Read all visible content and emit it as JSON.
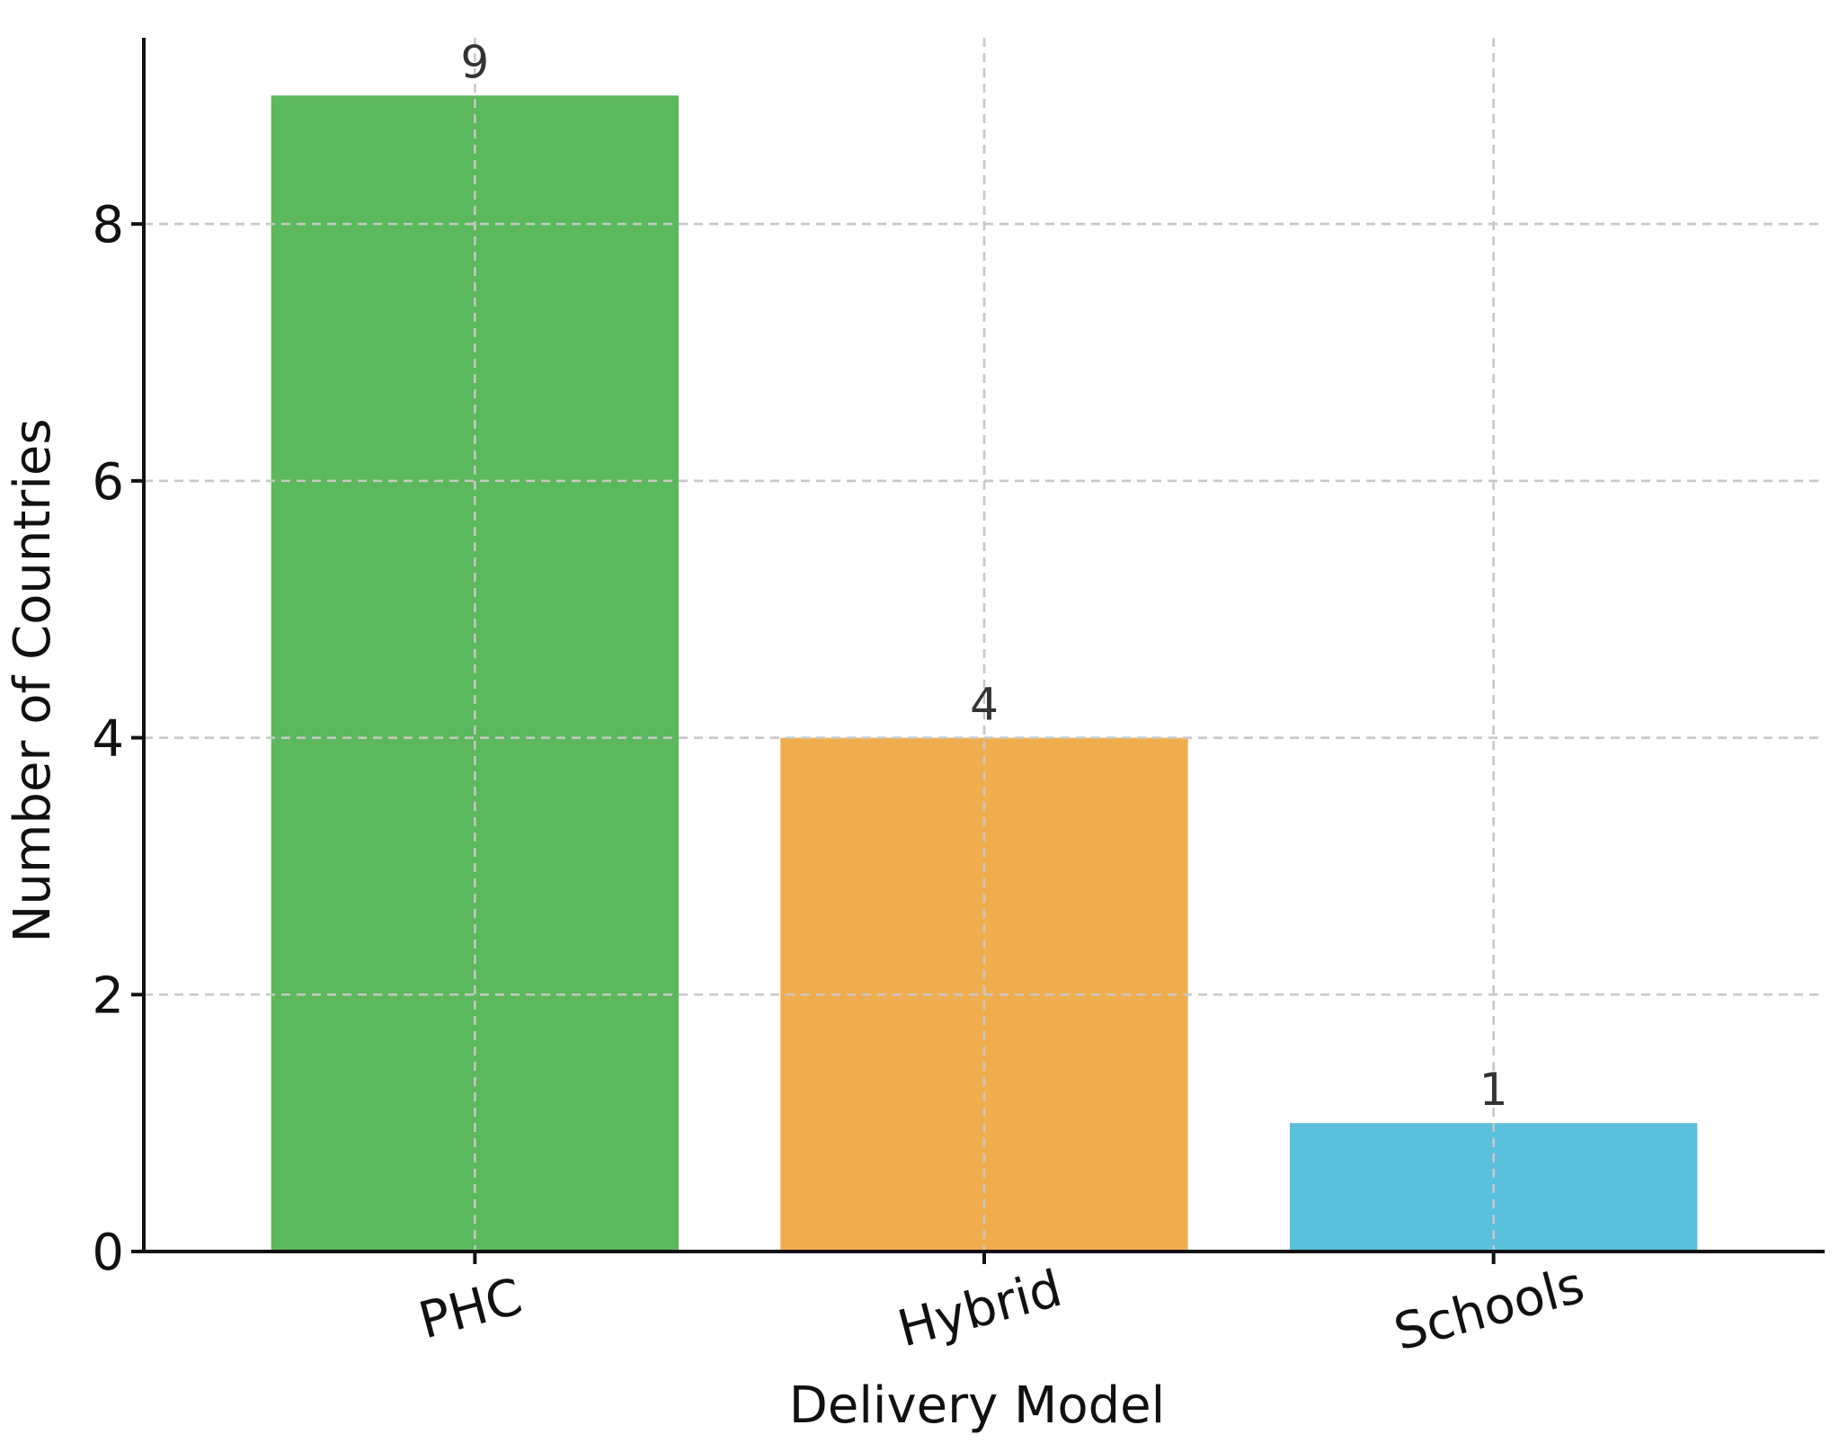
{
  "chart_data": {
    "type": "bar",
    "categories": [
      "PHC",
      "Hybrid",
      "Schools"
    ],
    "values": [
      9,
      4,
      1
    ],
    "value_labels": [
      "9",
      "4",
      "1"
    ],
    "colors": [
      "#5cb85c",
      "#f0ad4e",
      "#5bc0de"
    ],
    "title": "",
    "xlabel": "Delivery Model",
    "ylabel": "Number of Countries",
    "ylim": [
      0,
      9.45
    ],
    "yticks": [
      0,
      2,
      4,
      6,
      8
    ],
    "ytick_labels": [
      "0",
      "2",
      "4",
      "6",
      "8"
    ],
    "grid": true,
    "legend": "none",
    "xtick_rotation_deg": -15
  }
}
